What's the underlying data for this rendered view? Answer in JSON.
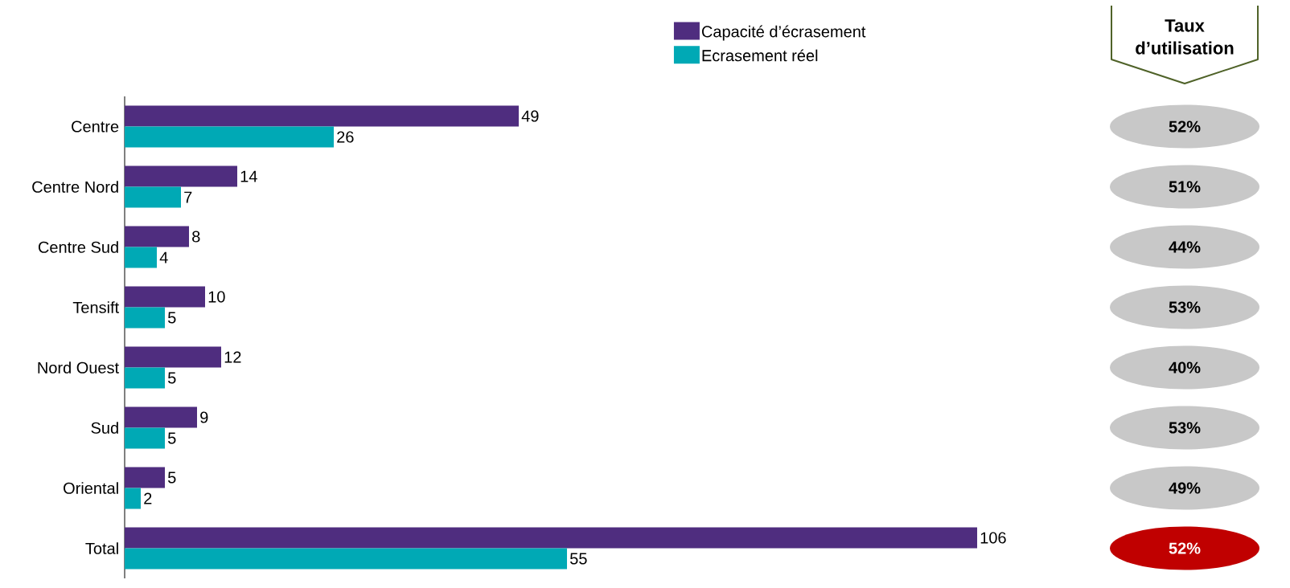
{
  "chart_data": [
    {
      "type": "bar",
      "orientation": "horizontal",
      "categories": [
        "Centre",
        "Centre Nord",
        "Centre Sud",
        "Tensift",
        "Nord Ouest",
        "Sud",
        "Oriental",
        "Total"
      ],
      "series": [
        {
          "name": "Capacité d’écrasement",
          "color": "#4f2d7f",
          "values": [
            49,
            14,
            8,
            10,
            12,
            9,
            5,
            106
          ]
        },
        {
          "name": "Ecrasement réel",
          "color": "#00a9b5",
          "values": [
            26,
            7,
            4,
            5,
            5,
            5,
            2,
            55
          ]
        }
      ],
      "data_labels": true,
      "legend": "top"
    },
    {
      "type": "other",
      "title": "Taux d’utilisation",
      "categories": [
        null,
        null,
        null,
        null,
        null,
        null,
        null,
        null
      ],
      "value_labels": [
        "52%",
        "51%",
        "44%",
        "53%",
        "40%",
        "53%",
        "49%",
        "52%"
      ],
      "colors": [
        "#c8c8c8",
        "#c8c8c8",
        "#c8c8c8",
        "#c8c8c8",
        "#c8c8c8",
        "#c8c8c8",
        "#c8c8c8",
        "#c00000"
      ]
    }
  ]
}
